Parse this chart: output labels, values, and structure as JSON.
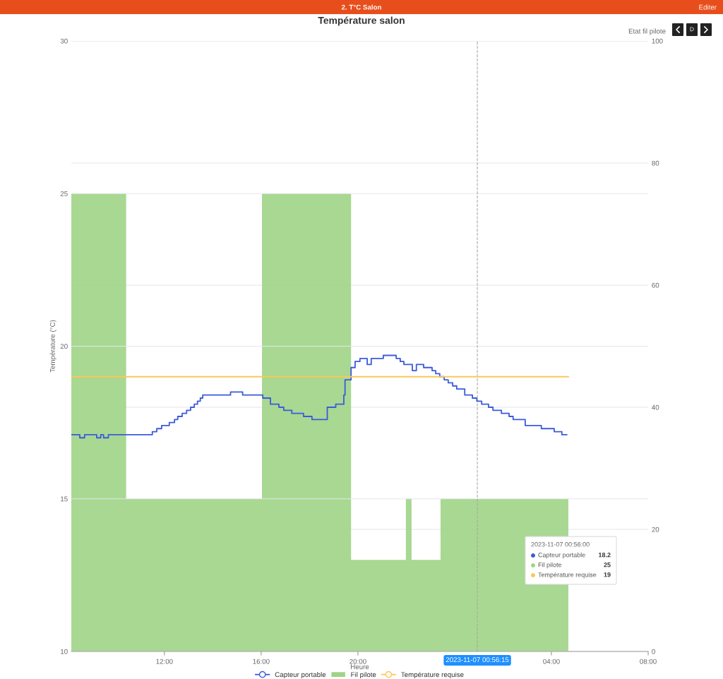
{
  "chart_data": {
    "type": "line",
    "title": "Température salon",
    "xlabel": "Heure",
    "ylabel": "Température (°C)",
    "y2label": "Etat fil pilote",
    "annotations": [
      "2. T°C Salon",
      "Editer",
      "D",
      "2023-11-07 00:56:00",
      "Capteur portable",
      "18.2",
      "Fil pilote",
      "25",
      "Température requise",
      "19"
    ],
    "series": [
      {
        "name": "Capteur portable",
        "type": "step",
        "color": "#3b5bdb",
        "x": [
          "2023-11-06T08:09",
          "2023-11-06T08:30",
          "2023-11-06T08:42",
          "2023-11-06T09:12",
          "2023-11-06T09:22",
          "2023-11-06T09:29",
          "2023-11-06T09:41",
          "2023-11-06T11:30",
          "2023-11-06T11:41",
          "2023-11-06T11:53",
          "2023-11-06T12:12",
          "2023-11-06T12:25",
          "2023-11-06T12:33",
          "2023-11-06T12:44",
          "2023-11-06T12:55",
          "2023-11-06T13:05",
          "2023-11-06T13:14",
          "2023-11-06T13:22",
          "2023-11-06T13:29",
          "2023-11-06T13:35",
          "2023-11-06T14:44",
          "2023-11-06T15:14",
          "2023-11-06T16:04",
          "2023-11-06T16:23",
          "2023-11-06T16:44",
          "2023-11-06T16:56",
          "2023-11-06T17:16",
          "2023-11-06T17:45",
          "2023-11-06T18:06",
          "2023-11-06T18:44",
          "2023-11-06T19:05",
          "2023-11-06T19:25",
          "2023-11-06T19:28",
          "2023-11-06T19:43",
          "2023-11-06T19:53",
          "2023-11-06T20:05",
          "2023-11-06T20:23",
          "2023-11-06T20:33",
          "2023-11-06T21:03",
          "2023-11-06T21:35",
          "2023-11-06T21:45",
          "2023-11-06T21:54",
          "2023-11-06T22:15",
          "2023-11-06T22:25",
          "2023-11-06T22:43",
          "2023-11-06T23:04",
          "2023-11-06T23:13",
          "2023-11-06T23:23",
          "2023-11-06T23:34",
          "2023-11-06T23:44",
          "2023-11-06T23:55",
          "2023-11-07T00:05",
          "2023-11-07T00:25",
          "2023-11-07T00:44",
          "2023-11-07T00:55",
          "2023-11-07T01:07",
          "2023-11-07T01:24",
          "2023-11-07T01:35",
          "2023-11-07T01:56",
          "2023-11-07T02:15",
          "2023-11-07T02:25",
          "2023-11-07T02:55",
          "2023-11-07T03:35",
          "2023-11-07T04:07",
          "2023-11-07T04:26",
          "2023-11-07T04:38"
        ],
        "values": [
          17.1,
          17.0,
          17.1,
          17.0,
          17.1,
          17.0,
          17.1,
          17.2,
          17.3,
          17.4,
          17.5,
          17.6,
          17.7,
          17.8,
          17.9,
          18.0,
          18.1,
          18.2,
          18.3,
          18.4,
          18.5,
          18.4,
          18.3,
          18.1,
          18.0,
          17.9,
          17.8,
          17.7,
          17.6,
          18.0,
          18.1,
          18.4,
          18.9,
          19.3,
          19.5,
          19.6,
          19.4,
          19.6,
          19.7,
          19.6,
          19.5,
          19.4,
          19.2,
          19.4,
          19.3,
          19.2,
          19.1,
          19.0,
          18.9,
          18.8,
          18.7,
          18.6,
          18.4,
          18.3,
          18.2,
          18.1,
          18.0,
          17.9,
          17.8,
          17.7,
          17.6,
          17.4,
          17.3,
          17.2,
          17.1,
          17.1
        ]
      },
      {
        "name": "Fil pilote",
        "type": "area",
        "axis": "y2",
        "color": "#9fd485",
        "x": [
          "2023-11-06T08:09",
          "2023-11-06T10:25",
          "2023-11-06T10:25",
          "2023-11-06T16:02",
          "2023-11-06T16:02",
          "2023-11-06T19:43",
          "2023-11-06T19:43",
          "2023-11-06T21:59",
          "2023-11-06T21:59",
          "2023-11-06T22:13",
          "2023-11-06T22:13",
          "2023-11-06T23:25",
          "2023-11-06T23:25",
          "2023-11-07T04:42"
        ],
        "values": [
          75,
          75,
          25,
          25,
          75,
          75,
          15,
          15,
          25,
          25,
          15,
          15,
          25,
          25
        ]
      },
      {
        "name": "Température requise",
        "color": "#fac858",
        "x": [
          "2023-11-06T08:09",
          "2023-11-07T04:42"
        ],
        "values": [
          19,
          19
        ]
      }
    ],
    "xlim": [
      "2023-11-06T08:09",
      "2023-11-07T08:00"
    ],
    "xticks": [
      {
        "value": "2023-11-06T12:00",
        "label": "12:00"
      },
      {
        "value": "2023-11-06T16:00",
        "label": "16:00"
      },
      {
        "value": "2023-11-06T20:00",
        "label": "20:00"
      },
      {
        "value": "2023-11-07T04:00",
        "label": "04:00"
      },
      {
        "value": "2023-11-07T08:00",
        "label": "08:00"
      }
    ],
    "ylim": [
      10,
      30
    ],
    "yticks": [
      10,
      15,
      20,
      25,
      30
    ],
    "y2lim": [
      0,
      100
    ],
    "y2ticks": [
      0,
      20,
      40,
      60,
      80,
      100
    ],
    "ref_lines": [
      {
        "axis": "x",
        "value": "2023-11-07T00:56:15",
        "label": "2023-11-07 00:56:15",
        "color": "#aaaaaa",
        "line_style": "dashed"
      }
    ],
    "grid": "y",
    "legend": "bottom",
    "marker": "none"
  }
}
